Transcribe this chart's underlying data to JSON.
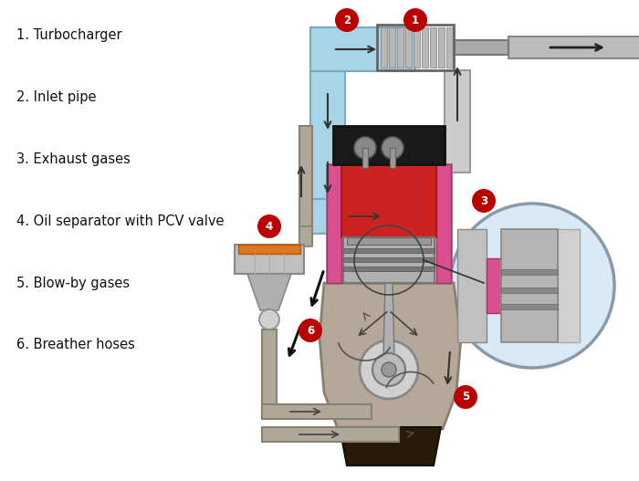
{
  "legend_items": [
    "1. Turbocharger",
    "2. Inlet pipe",
    "3. Exhaust gases",
    "4. Oil separator with PCV valve",
    "5. Blow-by gases",
    "6. Breather hoses"
  ],
  "bg_color": "#ffffff",
  "label_color": "#bb0000",
  "label_text_color": "#ffffff",
  "blue_color": "#a8d4e8",
  "blue_edge": "#7aaabb",
  "pink_color": "#d95090",
  "red_fill": "#cc2222",
  "gray_engine": "#b5a898",
  "engine_edge": "#8a7f70",
  "light_gray": "#c8c8c8",
  "mid_gray": "#a0a0a0",
  "dark_gray": "#666666",
  "pipe_color": "#a09080",
  "pipe_edge": "#807060",
  "oil_color": "#2a1a08",
  "turbo_silver": "#b0b0b0",
  "zoom_bg": "#d8eaf5",
  "zoom_edge": "#8899aa"
}
